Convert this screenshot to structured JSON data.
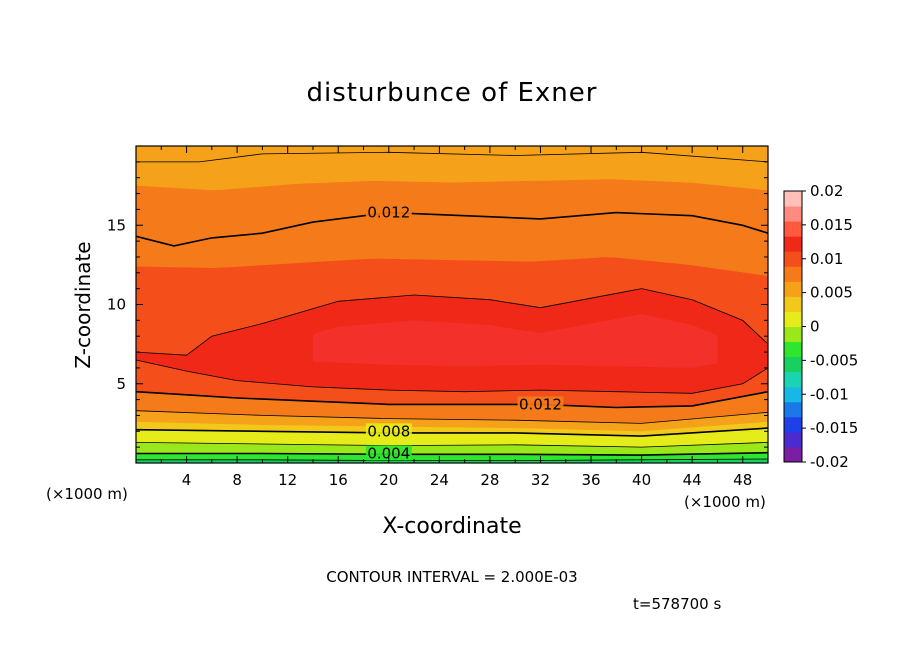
{
  "chart_data": {
    "type": "heatmap",
    "title": "disturbunce of Exner",
    "xlabel": "X-coordinate",
    "ylabel": "Z-coordinate",
    "x_unit_left": "(×1000 m)",
    "x_unit_right": "(×1000 m)",
    "xlim": [
      0,
      50
    ],
    "ylim": [
      0,
      20
    ],
    "xticks": [
      4,
      8,
      12,
      16,
      20,
      24,
      28,
      32,
      36,
      40,
      44,
      48
    ],
    "yticks": [
      5,
      10,
      15
    ],
    "contour_interval_text": "CONTOUR INTERVAL = 2.000E-03",
    "contour_interval": 0.002,
    "time_text": "t=578700  s",
    "colorbar": {
      "range": [
        -0.02,
        0.02
      ],
      "labels": [
        "0.02",
        "0.015",
        "0.01",
        "0.005",
        "0",
        "-0.005",
        "-0.01",
        "-0.015",
        "-0.02"
      ],
      "colors": [
        "#7a1fa2",
        "#4a2bd0",
        "#1f3fe8",
        "#1a78e8",
        "#18b8e6",
        "#1ad3b0",
        "#18d060",
        "#2ee62e",
        "#9ae81a",
        "#e6ec1a",
        "#f2c81a",
        "#f5a21a",
        "#f57a1a",
        "#f44e1a",
        "#f02818",
        "#ff5a40",
        "#ff8a80",
        "#ffc0b8"
      ]
    },
    "labelled_contours": [
      {
        "value": 0.004,
        "label": "0.004",
        "x": 20,
        "y": 0.6
      },
      {
        "value": 0.008,
        "label": "0.008",
        "x": 20,
        "y": 2.0
      },
      {
        "value": 0.012,
        "label": "0.012",
        "x": 20,
        "y": 15.8
      },
      {
        "value": 0.012,
        "label": "0.012",
        "x": 32,
        "y": 3.7
      }
    ],
    "contours": [
      {
        "value": 0.002,
        "x": [
          0,
          10,
          20,
          30,
          40,
          50
        ],
        "y": [
          0.2,
          0.2,
          0.15,
          0.15,
          0.2,
          0.25
        ]
      },
      {
        "value": 0.004,
        "x": [
          0,
          10,
          20,
          30,
          40,
          50
        ],
        "y": [
          0.6,
          0.6,
          0.55,
          0.55,
          0.5,
          0.65
        ]
      },
      {
        "value": 0.006,
        "x": [
          0,
          10,
          20,
          30,
          40,
          50
        ],
        "y": [
          1.3,
          1.2,
          1.1,
          1.15,
          1.0,
          1.3
        ]
      },
      {
        "value": 0.008,
        "x": [
          0,
          10,
          20,
          30,
          40,
          50
        ],
        "y": [
          2.1,
          2.0,
          1.9,
          1.9,
          1.7,
          2.2
        ]
      },
      {
        "value": 0.01,
        "x": [
          0,
          10,
          20,
          30,
          40,
          50
        ],
        "y": [
          3.3,
          3.0,
          2.8,
          2.7,
          2.5,
          3.2
        ]
      },
      {
        "value": 0.012,
        "x": [
          0,
          4,
          8,
          14,
          20,
          26,
          32,
          38,
          44,
          50
        ],
        "y": [
          4.5,
          4.3,
          4.1,
          3.9,
          3.7,
          3.7,
          3.7,
          3.5,
          3.6,
          4.5
        ]
      },
      {
        "value": 0.012,
        "x": [
          0,
          3,
          6,
          10,
          14,
          20,
          26,
          32,
          38,
          44,
          48,
          50
        ],
        "y": [
          14.3,
          13.7,
          14.2,
          14.5,
          15.2,
          15.8,
          15.6,
          15.4,
          15.8,
          15.6,
          15.0,
          14.5
        ]
      },
      {
        "value": 0.014,
        "x": [
          0,
          4,
          6,
          10,
          16,
          22,
          28,
          32,
          36,
          40,
          44,
          48,
          50
        ],
        "y": [
          7.0,
          6.8,
          8.0,
          8.8,
          10.2,
          10.6,
          10.3,
          9.8,
          10.4,
          11.0,
          10.3,
          9.0,
          7.5
        ]
      },
      {
        "value": 0.014,
        "x": [
          0,
          4,
          8,
          14,
          20,
          26,
          32,
          38,
          44,
          48,
          50
        ],
        "y": [
          6.5,
          5.8,
          5.2,
          4.8,
          4.6,
          4.5,
          4.6,
          4.5,
          4.4,
          5.0,
          6.0
        ]
      },
      {
        "value": 0.01,
        "x": [
          0,
          5,
          10,
          20,
          30,
          40,
          50
        ],
        "y": [
          19.0,
          19.0,
          19.5,
          19.6,
          19.4,
          19.6,
          19.0
        ]
      }
    ],
    "bands": [
      {
        "fill_index": 13,
        "top": [
          12.4,
          12.3,
          12.6,
          12.9,
          12.8,
          12.7,
          13.0,
          12.5,
          11.8
        ],
        "bottom_from": "next"
      },
      {
        "fill_index": 12,
        "top": [
          17.5,
          17.2,
          17.6,
          17.8,
          17.7,
          17.8,
          17.9,
          17.7,
          17.2
        ]
      },
      {
        "fill_index": 11,
        "top": [
          19.0,
          19.0,
          19.3,
          19.4,
          19.3,
          19.4,
          19.5,
          19.3,
          19.0
        ]
      }
    ]
  }
}
